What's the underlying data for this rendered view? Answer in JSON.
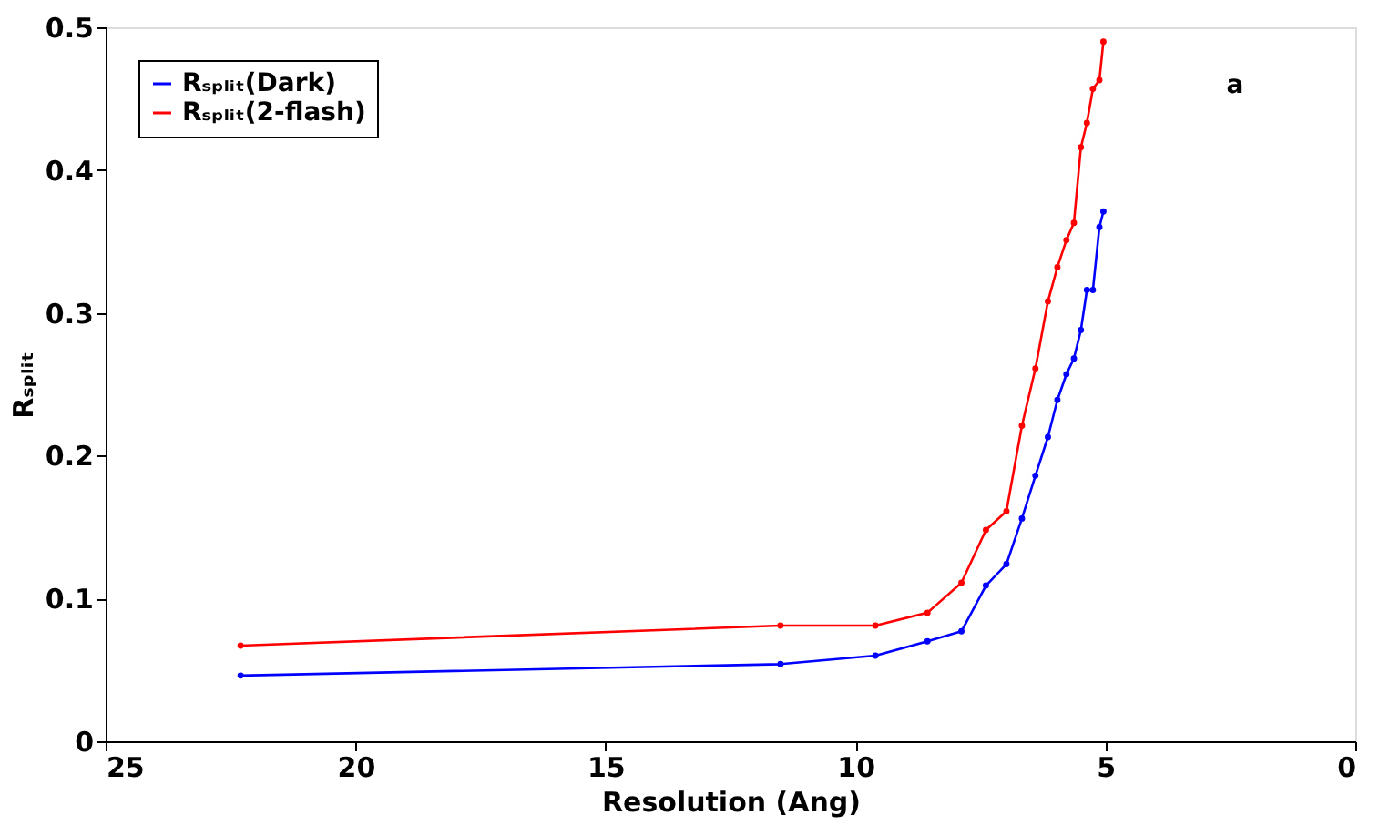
{
  "chart_data": {
    "type": "line",
    "xlabel": "Resolution (Ang)",
    "ylabel": "Rₛₚₗᵢₜ",
    "xlim": [
      25,
      0
    ],
    "xticks": [
      25,
      20,
      15,
      10,
      5,
      0
    ],
    "ylim": [
      0,
      0.5
    ],
    "yticks": [
      0,
      0.1,
      0.2,
      0.3,
      0.4,
      0.5
    ],
    "x": [
      22.3,
      11.5,
      9.6,
      8.56,
      7.88,
      7.39,
      6.98,
      6.67,
      6.4,
      6.15,
      5.96,
      5.78,
      5.63,
      5.49,
      5.37,
      5.25,
      5.12,
      5.04
    ],
    "series": [
      {
        "name": "Rₛₚₗᵢₜ(Dark)",
        "color": "#0000ff",
        "values": [
          0.046,
          0.054,
          0.06,
          0.07,
          0.077,
          0.109,
          0.124,
          0.156,
          0.186,
          0.213,
          0.239,
          0.257,
          0.268,
          0.288,
          0.316,
          0.316,
          0.36,
          0.371
        ]
      },
      {
        "name": "Rₛₚₗᵢₜ(2-flash)",
        "color": "#ff0000",
        "values": [
          0.067,
          0.081,
          0.081,
          0.09,
          0.111,
          0.148,
          0.161,
          0.221,
          0.261,
          0.308,
          0.332,
          0.351,
          0.363,
          0.416,
          0.433,
          0.457,
          0.463,
          0.49
        ]
      }
    ],
    "annotations": [
      "a"
    ],
    "legend": "top left",
    "marker": "circle",
    "line_style": "solid",
    "grid": false
  }
}
